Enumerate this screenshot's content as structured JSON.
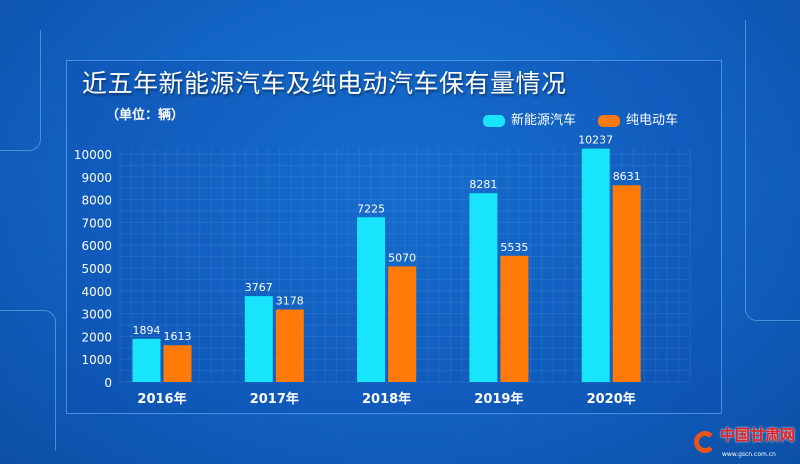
{
  "chart_data": {
    "type": "bar",
    "title": "近五年新能源汽车及纯电动汽车保有量情况",
    "unit_label": "（单位：辆）",
    "categories": [
      "2016年",
      "2017年",
      "2018年",
      "2019年",
      "2020年"
    ],
    "series": [
      {
        "name": "新能源汽车",
        "color": "#18e4fb",
        "values": [
          1894,
          3767,
          7225,
          8281,
          10237
        ]
      },
      {
        "name": "纯电动车",
        "color": "#ff7a08",
        "values": [
          1613,
          3178,
          5070,
          5535,
          8631
        ]
      }
    ],
    "yticks": [
      "0",
      "1000",
      "2000",
      "3000",
      "4000",
      "5000",
      "6000",
      "7000",
      "8000",
      "9000",
      "10000"
    ],
    "ylim": [
      0,
      10000
    ],
    "grid": true,
    "legend_position": "top-right"
  },
  "logo": {
    "text": "中国甘肃网",
    "url_text": "www.gscn.com.cn"
  }
}
